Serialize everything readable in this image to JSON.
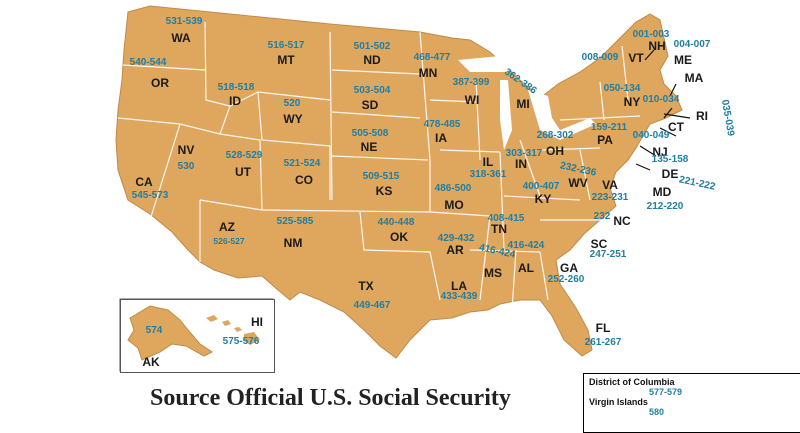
{
  "title": "Source Official U.S. Social Security",
  "colors": {
    "land": "#dfa65e",
    "border": "#ffffff",
    "outline": "#9a6a2e",
    "code_text": "#1f7fa2",
    "abbr_text": "#1a1a1a"
  },
  "states": [
    {
      "abbr": "WA",
      "range": "531-539"
    },
    {
      "abbr": "OR",
      "range": "540-544"
    },
    {
      "abbr": "CA",
      "range": "545-573"
    },
    {
      "abbr": "NV",
      "range": "530"
    },
    {
      "abbr": "ID",
      "range": "518-518"
    },
    {
      "abbr": "MT",
      "range": "516-517"
    },
    {
      "abbr": "WY",
      "range": "520"
    },
    {
      "abbr": "UT",
      "range": "528-529"
    },
    {
      "abbr": "AZ",
      "range": "526-527"
    },
    {
      "abbr": "CO",
      "range": "521-524"
    },
    {
      "abbr": "NM",
      "range": "525-585"
    },
    {
      "abbr": "ND",
      "range": "501-502"
    },
    {
      "abbr": "SD",
      "range": "503-504"
    },
    {
      "abbr": "NE",
      "range": "505-508"
    },
    {
      "abbr": "KS",
      "range": "509-515"
    },
    {
      "abbr": "OK",
      "range": "440-448"
    },
    {
      "abbr": "TX",
      "range": "449-467"
    },
    {
      "abbr": "MN",
      "range": "468-477"
    },
    {
      "abbr": "IA",
      "range": "478-485"
    },
    {
      "abbr": "MO",
      "range": "486-500"
    },
    {
      "abbr": "AR",
      "range": "429-432"
    },
    {
      "abbr": "LA",
      "range": "433-439"
    },
    {
      "abbr": "WI",
      "range": "387-399"
    },
    {
      "abbr": "IL",
      "range": "318-361"
    },
    {
      "abbr": "MI",
      "range": "362-386"
    },
    {
      "abbr": "IN",
      "range": "303-317"
    },
    {
      "abbr": "OH",
      "range": "268-302"
    },
    {
      "abbr": "KY",
      "range": "400-407"
    },
    {
      "abbr": "TN",
      "range": "408-415"
    },
    {
      "abbr": "MS",
      "range": "416-424"
    },
    {
      "abbr": "AL",
      "range": "416-424"
    },
    {
      "abbr": "GA",
      "range": "252-260"
    },
    {
      "abbr": "FL",
      "range": "261-267"
    },
    {
      "abbr": "SC",
      "range": "247-251"
    },
    {
      "abbr": "NC",
      "range": "232"
    },
    {
      "abbr": "VA",
      "range": "223-231"
    },
    {
      "abbr": "WV",
      "range": "232-236"
    },
    {
      "abbr": "PA",
      "range": "159-211"
    },
    {
      "abbr": "NY",
      "range": "050-134"
    },
    {
      "abbr": "VT",
      "range": "008-009"
    },
    {
      "abbr": "NH",
      "range": "001-003"
    },
    {
      "abbr": "ME",
      "range": "004-007"
    },
    {
      "abbr": "MA",
      "range": "010-034"
    },
    {
      "abbr": "RI",
      "range": "035-039"
    },
    {
      "abbr": "CT",
      "range": "040-049"
    },
    {
      "abbr": "NJ",
      "range": "135-158"
    },
    {
      "abbr": "DE",
      "range": "221-222"
    },
    {
      "abbr": "MD",
      "range": "212-220"
    },
    {
      "abbr": "AK",
      "range": "574"
    },
    {
      "abbr": "HI",
      "range": "575-576"
    }
  ],
  "legend": [
    {
      "name": "District of Columbia",
      "range": "577-579"
    },
    {
      "name": "Virgin Islands",
      "range": "580"
    }
  ]
}
